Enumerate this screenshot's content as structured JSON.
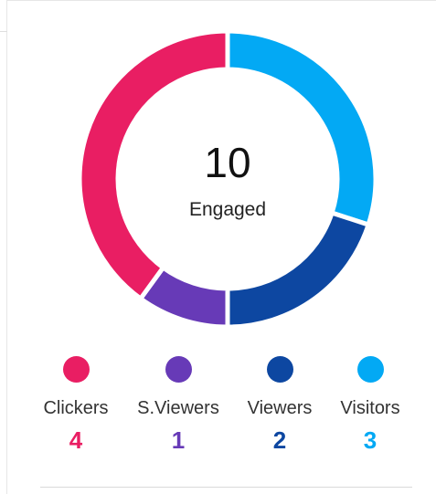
{
  "engagement": {
    "total": "10",
    "total_label": "Engaged"
  },
  "segments": [
    {
      "label": "Visitors",
      "count": "3",
      "value": 3,
      "color": "#03a9f4"
    },
    {
      "label": "Viewers",
      "count": "2",
      "value": 2,
      "color": "#0d47a1"
    },
    {
      "label": "S.Viewers",
      "count": "1",
      "value": 1,
      "color": "#673ab7"
    },
    {
      "label": "Clickers",
      "count": "4",
      "value": 4,
      "color": "#e91e63"
    }
  ],
  "legend": [
    {
      "label": "Clickers",
      "count": "4",
      "color": "#e91e63"
    },
    {
      "label": "S.Viewers",
      "count": "1",
      "color": "#673ab7"
    },
    {
      "label": "Viewers",
      "count": "2",
      "color": "#0d47a1"
    },
    {
      "label": "Visitors",
      "count": "3",
      "color": "#03a9f4"
    }
  ]
}
